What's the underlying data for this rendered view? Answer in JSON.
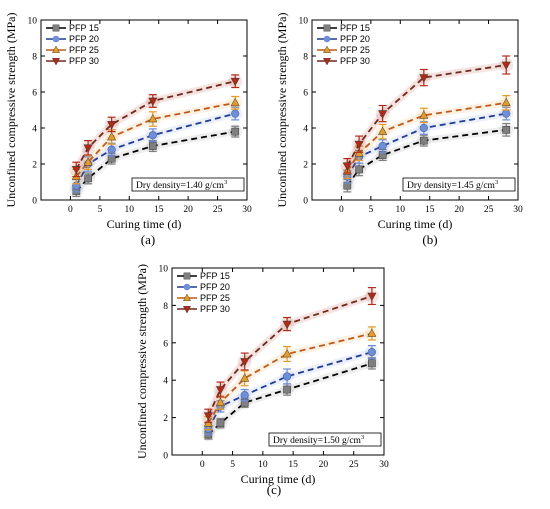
{
  "chart_data": [
    {
      "type": "scatter",
      "panel_label": "(a)",
      "xlabel": "Curing time (d)",
      "ylabel": "Unconfined compressive strength (MPa)",
      "xlim": [
        -5,
        30
      ],
      "ylim": [
        0,
        10
      ],
      "xticks": [
        0,
        5,
        10,
        15,
        20,
        25,
        30
      ],
      "yticks": [
        0,
        2,
        4,
        6,
        8,
        10
      ],
      "annotation_prefix": "Dry density=1.40 g/cm",
      "annotation_sup": "3",
      "legend_position": "top-left",
      "grid": false,
      "x": [
        1,
        3,
        7,
        14,
        28
      ],
      "series": [
        {
          "name": "PFP 15",
          "marker": "square",
          "color": "#7f7f7f",
          "line_color": "#000000",
          "values": [
            0.5,
            1.2,
            2.3,
            3.0,
            3.8
          ],
          "err": [
            0.3,
            0.3,
            0.3,
            0.3,
            0.3
          ]
        },
        {
          "name": "PFP 20",
          "marker": "circle",
          "color": "#6f8ed8",
          "line_color": "#1f3a93",
          "values": [
            0.8,
            2.0,
            2.8,
            3.6,
            4.8
          ],
          "err": [
            0.35,
            0.4,
            0.35,
            0.35,
            0.35
          ]
        },
        {
          "name": "PFP 25",
          "marker": "triangle-up",
          "color": "#e39b2b",
          "line_color": "#c0581d",
          "values": [
            1.3,
            2.1,
            3.5,
            4.5,
            5.4
          ],
          "err": [
            0.4,
            0.4,
            0.4,
            0.4,
            0.35
          ]
        },
        {
          "name": "PFP 30",
          "marker": "triangle-down",
          "color": "#b02a18",
          "line_color": "#6e2a1a",
          "values": [
            1.7,
            2.9,
            4.2,
            5.5,
            6.6
          ],
          "err": [
            0.4,
            0.4,
            0.4,
            0.35,
            0.35
          ]
        }
      ]
    },
    {
      "type": "scatter",
      "panel_label": "(b)",
      "xlabel": "Curing time (d)",
      "ylabel": "Unconfined compressive strength (MPa)",
      "xlim": [
        -5,
        30
      ],
      "ylim": [
        0,
        10
      ],
      "xticks": [
        0,
        5,
        10,
        15,
        20,
        25,
        30
      ],
      "yticks": [
        0,
        2,
        4,
        6,
        8,
        10
      ],
      "annotation_prefix": "Dry density=1.45 g/cm",
      "annotation_sup": "3",
      "legend_position": "top-left",
      "grid": false,
      "x": [
        1,
        3,
        7,
        14,
        28
      ],
      "series": [
        {
          "name": "PFP 15",
          "marker": "square",
          "color": "#7f7f7f",
          "line_color": "#000000",
          "values": [
            0.8,
            1.7,
            2.5,
            3.3,
            3.9
          ],
          "err": [
            0.35,
            0.35,
            0.3,
            0.3,
            0.35
          ]
        },
        {
          "name": "PFP 20",
          "marker": "circle",
          "color": "#6f8ed8",
          "line_color": "#1f3a93",
          "values": [
            1.3,
            2.4,
            3.0,
            4.0,
            4.8
          ],
          "err": [
            0.35,
            0.35,
            0.35,
            0.35,
            0.35
          ]
        },
        {
          "name": "PFP 25",
          "marker": "triangle-up",
          "color": "#e39b2b",
          "line_color": "#c0581d",
          "values": [
            1.6,
            2.6,
            3.8,
            4.7,
            5.4
          ],
          "err": [
            0.4,
            0.4,
            0.4,
            0.4,
            0.4
          ]
        },
        {
          "name": "PFP 30",
          "marker": "triangle-down",
          "color": "#b02a18",
          "line_color": "#6e2a1a",
          "values": [
            1.9,
            3.1,
            4.8,
            6.8,
            7.5
          ],
          "err": [
            0.4,
            0.45,
            0.45,
            0.45,
            0.5
          ]
        }
      ]
    },
    {
      "type": "scatter",
      "panel_label": "(c)",
      "xlabel": "Curing time (d)",
      "ylabel": "Unconfined compressive strength (MPa)",
      "xlim": [
        -5,
        30
      ],
      "ylim": [
        0,
        10
      ],
      "xticks": [
        0,
        5,
        10,
        15,
        20,
        25,
        30
      ],
      "yticks": [
        0,
        2,
        4,
        6,
        8,
        10
      ],
      "annotation_prefix": "Dry density=1.50 g/cm",
      "annotation_sup": "3",
      "legend_position": "top-left",
      "grid": false,
      "x": [
        1,
        3,
        7,
        14,
        28
      ],
      "series": [
        {
          "name": "PFP 15",
          "marker": "square",
          "color": "#7f7f7f",
          "line_color": "#000000",
          "values": [
            1.1,
            1.7,
            2.8,
            3.5,
            4.9
          ],
          "err": [
            0.25,
            0.25,
            0.25,
            0.3,
            0.3
          ]
        },
        {
          "name": "PFP 20",
          "marker": "circle",
          "color": "#6f8ed8",
          "line_color": "#1f3a93",
          "values": [
            1.4,
            2.6,
            3.2,
            4.2,
            5.5
          ],
          "err": [
            0.3,
            0.3,
            0.3,
            0.4,
            0.35
          ]
        },
        {
          "name": "PFP 25",
          "marker": "triangle-up",
          "color": "#e39b2b",
          "line_color": "#c0581d",
          "values": [
            1.7,
            2.8,
            4.1,
            5.4,
            6.5
          ],
          "err": [
            0.35,
            0.35,
            0.4,
            0.4,
            0.35
          ]
        },
        {
          "name": "PFP 30",
          "marker": "triangle-down",
          "color": "#b02a18",
          "line_color": "#6e2a1a",
          "values": [
            2.1,
            3.5,
            5.0,
            7.0,
            8.5
          ],
          "err": [
            0.35,
            0.4,
            0.45,
            0.35,
            0.45
          ]
        }
      ]
    }
  ]
}
